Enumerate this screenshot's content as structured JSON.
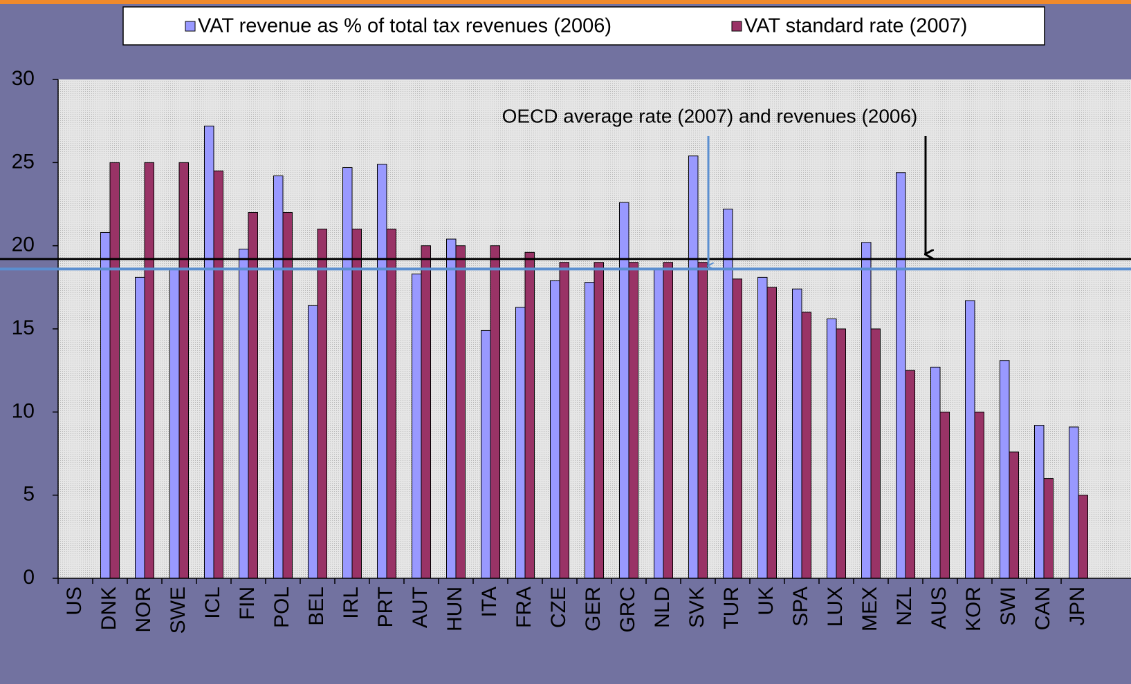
{
  "chart_data": {
    "type": "bar",
    "categories": [
      "US",
      "DNK",
      "NOR",
      "SWE",
      "ICL",
      "FIN",
      "POL",
      "BEL",
      "IRL",
      "PRT",
      "AUT",
      "HUN",
      "ITA",
      "FRA",
      "CZE",
      "GER",
      "GRC",
      "NLD",
      "SVK",
      "TUR",
      "UK",
      "SPA",
      "LUX",
      "MEX",
      "NZL",
      "AUS",
      "KOR",
      "SWI",
      "CAN",
      "JPN"
    ],
    "series": [
      {
        "name": "VAT revenue as % of total tax revenues (2006)",
        "color": "#9999ff",
        "values": [
          null,
          20.8,
          18.1,
          18.6,
          27.2,
          19.8,
          24.2,
          16.4,
          24.7,
          24.9,
          18.3,
          20.4,
          14.9,
          16.3,
          17.9,
          17.8,
          22.6,
          18.6,
          25.4,
          22.2,
          18.1,
          17.4,
          15.6,
          20.2,
          24.4,
          12.7,
          16.7,
          13.1,
          9.2,
          9.1
        ]
      },
      {
        "name": "VAT standard rate (2007)",
        "color": "#993366",
        "values": [
          null,
          25,
          25,
          25,
          24.5,
          22,
          22,
          21,
          21,
          21,
          20,
          20,
          20,
          19.6,
          19,
          19,
          19,
          19,
          19,
          18,
          17.5,
          16,
          15,
          15,
          12.5,
          10,
          10,
          7.6,
          6,
          5
        ]
      }
    ],
    "ylim": [
      0,
      30
    ],
    "yticks": [
      0,
      5,
      10,
      15,
      20,
      25,
      30
    ],
    "grid": false,
    "reference_lines": [
      {
        "value": 19.2,
        "color": "#000000"
      },
      {
        "value": 18.6,
        "color": "#5b8fd0"
      }
    ],
    "annotation": "OECD average rate (2007) and revenues (2006)"
  }
}
